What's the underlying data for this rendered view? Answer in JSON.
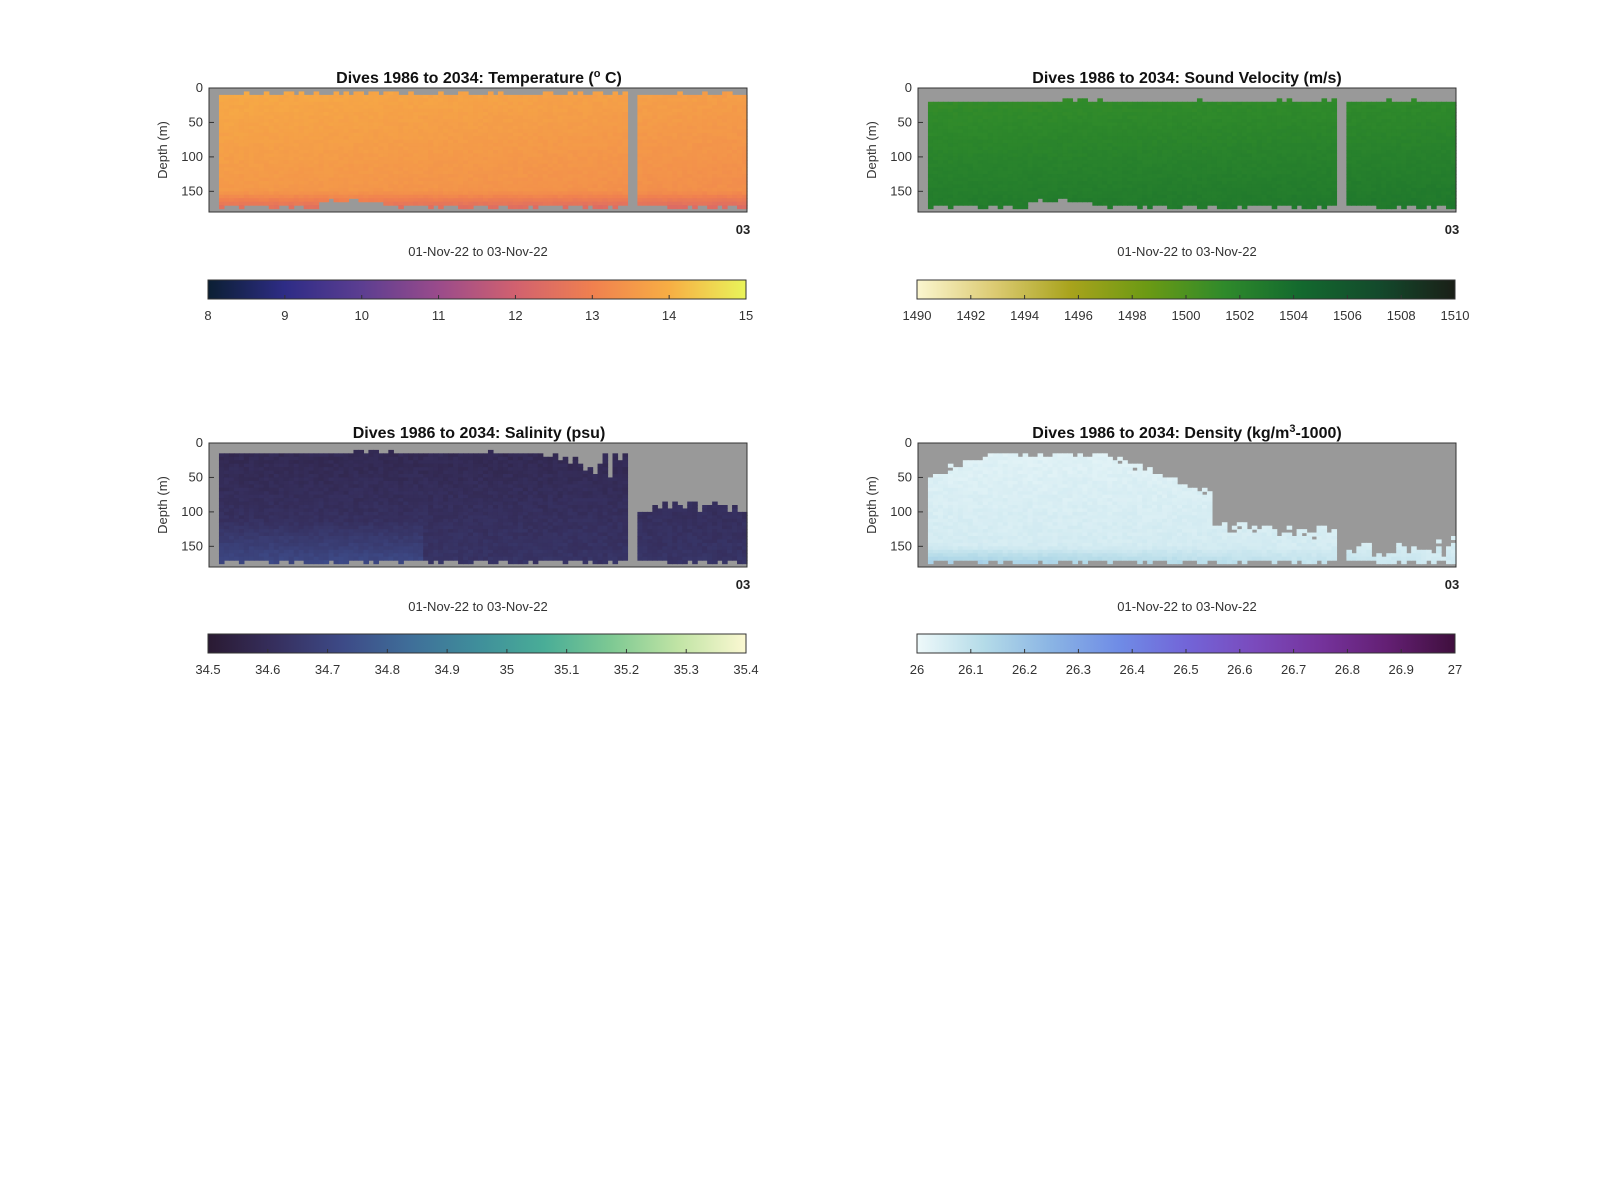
{
  "chart_data": [
    {
      "type": "heatmap",
      "title_prefix": "Dives 1986 to 2034: Temperature (",
      "title_sup": "o",
      "title_suffix": " C)",
      "ylabel": "Depth (m)",
      "xlabel": "01-Nov-22 to 03-Nov-22",
      "x_end_label": "03",
      "yticks": [
        0,
        50,
        100,
        150
      ],
      "ylim": [
        0,
        180
      ],
      "colorbar": {
        "range": [
          8,
          15
        ],
        "ticks": [
          "8",
          "9",
          "10",
          "11",
          "12",
          "13",
          "14",
          "15"
        ],
        "colors": [
          "#0b1f33",
          "#2e2c86",
          "#5c3e91",
          "#9a4b8b",
          "#d1616f",
          "#f0804f",
          "#f7ae44",
          "#e9f45a"
        ]
      },
      "field": {
        "kind": "temperature",
        "surface": 13.9,
        "bottom": 12.7,
        "gap_color": "#999999"
      }
    },
    {
      "type": "heatmap",
      "title_prefix": "Dives 1986 to 2034: Sound Velocity (m/s)",
      "title_sup": "",
      "title_suffix": "",
      "ylabel": "Depth (m)",
      "xlabel": "01-Nov-22 to 03-Nov-22",
      "x_end_label": "03",
      "yticks": [
        0,
        50,
        100,
        150
      ],
      "ylim": [
        0,
        180
      ],
      "colorbar": {
        "range": [
          1490,
          1510
        ],
        "ticks": [
          "1490",
          "1492",
          "1494",
          "1496",
          "1498",
          "1500",
          "1502",
          "1504",
          "1506",
          "1508",
          "1510"
        ],
        "colors": [
          "#fbf6cf",
          "#dccb73",
          "#a8a31c",
          "#6b9a14",
          "#2f8a2b",
          "#13692e",
          "#134a2c",
          "#1a1f17"
        ]
      },
      "field": {
        "kind": "sound-velocity",
        "surface": 1501.0,
        "bottom": 1502.6,
        "gap_color": "#999999"
      }
    },
    {
      "type": "heatmap",
      "title_prefix": "Dives 1986 to 2034: Salinity (psu)",
      "title_sup": "",
      "title_suffix": "",
      "ylabel": "Depth (m)",
      "xlabel": "01-Nov-22 to 03-Nov-22",
      "x_end_label": "03",
      "yticks": [
        0,
        50,
        100,
        150
      ],
      "ylim": [
        0,
        180
      ],
      "colorbar": {
        "range": [
          34.5,
          35.4
        ],
        "ticks": [
          "34.5",
          "34.6",
          "34.7",
          "34.8",
          "34.9",
          "35",
          "35.1",
          "35.2",
          "35.3",
          "35.4"
        ],
        "colors": [
          "#2a1a32",
          "#362f5e",
          "#3d4a87",
          "#3f6e99",
          "#3f8e9b",
          "#49ad97",
          "#7ec993",
          "#c1e4a5",
          "#fbf8d2"
        ]
      },
      "field": {
        "kind": "salinity",
        "surface": 34.58,
        "bottom": 34.7,
        "gap_color": "#999999"
      }
    },
    {
      "type": "heatmap",
      "title_prefix": "Dives 1986 to 2034: Density (kg/m",
      "title_sup": "3",
      "title_suffix": "-1000)",
      "ylabel": "Depth (m)",
      "xlabel": "01-Nov-22 to 03-Nov-22",
      "x_end_label": "03",
      "yticks": [
        0,
        50,
        100,
        150
      ],
      "ylim": [
        0,
        180
      ],
      "colorbar": {
        "range": [
          26,
          27
        ],
        "ticks": [
          "26",
          "26.1",
          "26.2",
          "26.3",
          "26.4",
          "26.5",
          "26.6",
          "26.7",
          "26.8",
          "26.9",
          "27"
        ],
        "colors": [
          "#eef9fa",
          "#b4dbe8",
          "#8ab4e4",
          "#6f8ce6",
          "#7265d8",
          "#7a4bbd",
          "#75339c",
          "#631f73",
          "#3f0f3d"
        ]
      },
      "field": {
        "kind": "density",
        "surface": 26.03,
        "bottom": 26.15,
        "gap_color": "#999999"
      }
    }
  ]
}
